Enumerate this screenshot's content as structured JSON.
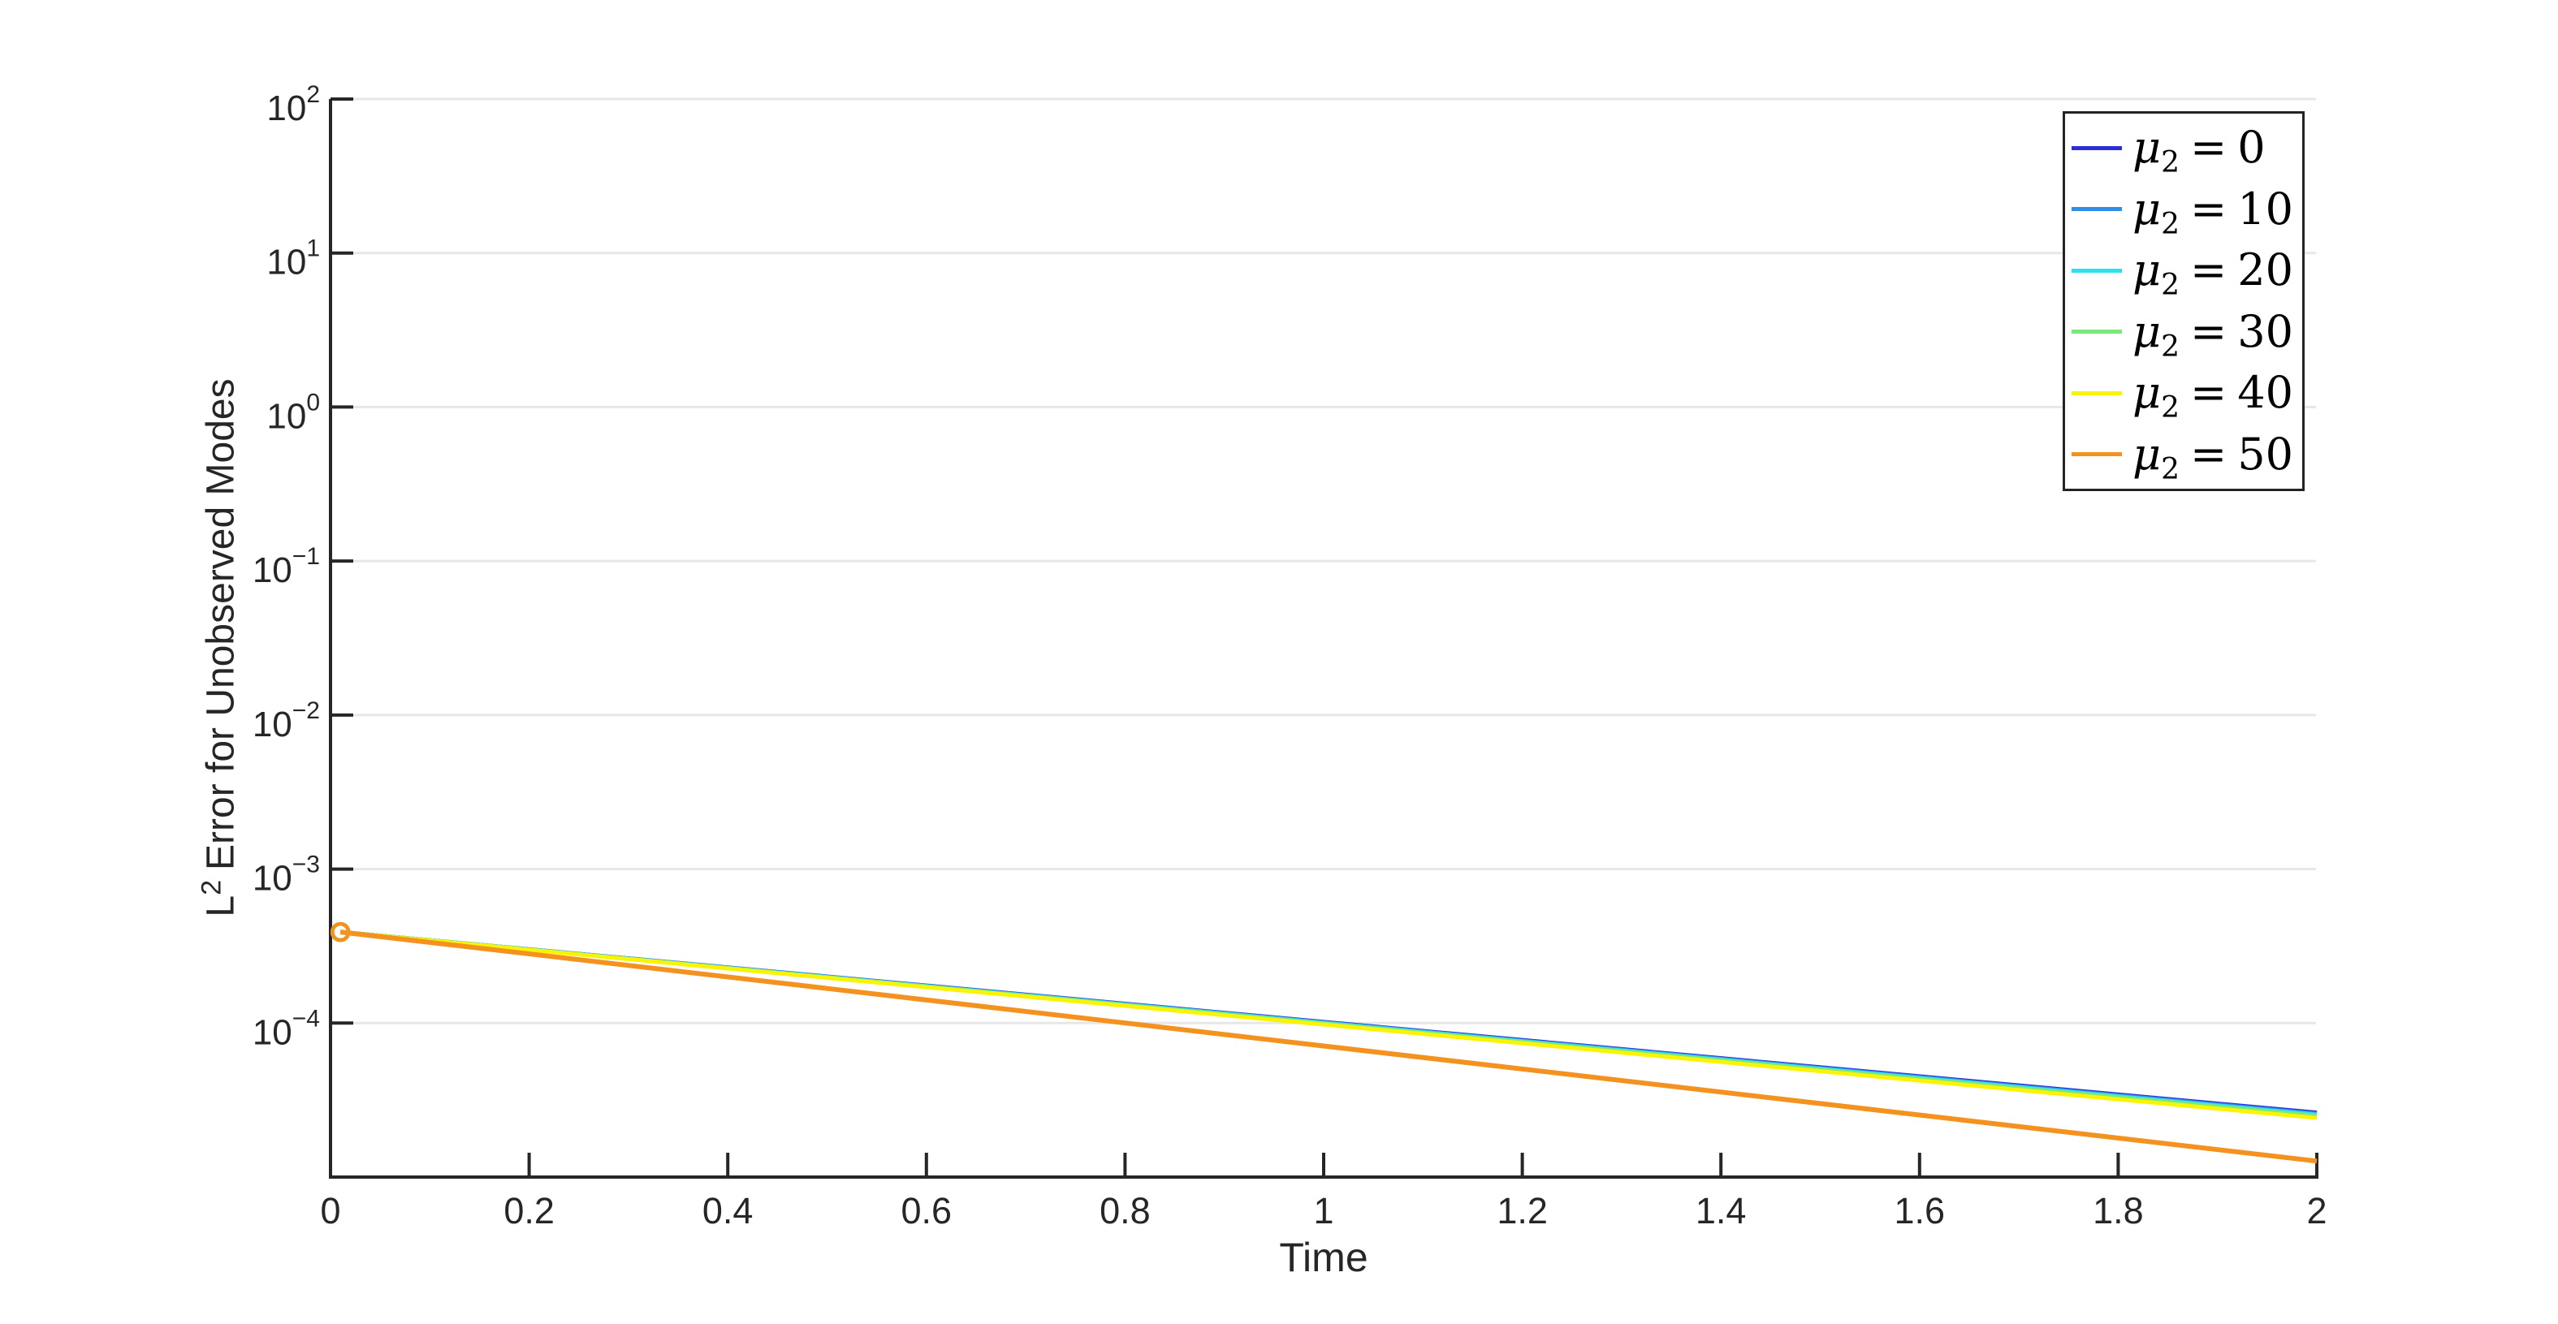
{
  "figure": {
    "background": "#ffffff",
    "title": ""
  },
  "labels": {
    "xlabel": "Time",
    "ylabel_pre": "L",
    "ylabel_sup": "2",
    "ylabel_rest": "Error for Unobserved Modes"
  },
  "colors": {
    "axis": "#262626",
    "grid": "#e7e7e7",
    "legend_border": "#242424"
  },
  "chart_data": {
    "type": "line",
    "title": "",
    "xlabel": "Time",
    "ylabel": "L^2 Error for Unobserved Modes",
    "x_axis": {
      "lim": [
        0,
        2
      ],
      "ticks": [
        {
          "label": "0",
          "value": 0
        },
        {
          "label": "0.2",
          "value": 0.2
        },
        {
          "label": "0.4",
          "value": 0.4
        },
        {
          "label": "0.6",
          "value": 0.6
        },
        {
          "label": "0.8",
          "value": 0.8
        },
        {
          "label": "1",
          "value": 1
        },
        {
          "label": "1.2",
          "value": 1.2
        },
        {
          "label": "1.4",
          "value": 1.4
        },
        {
          "label": "1.6",
          "value": 1.6
        },
        {
          "label": "1.8",
          "value": 1.8
        },
        {
          "label": "2",
          "value": 2
        }
      ]
    },
    "y_axis": {
      "scale": "log",
      "lim": [
        1e-05,
        100
      ],
      "ticks": [
        {
          "base": "10",
          "exp": "2",
          "value": 100
        },
        {
          "base": "10",
          "exp": "1",
          "value": 10
        },
        {
          "base": "10",
          "exp": "0",
          "value": 1
        },
        {
          "base": "10",
          "exp": "−1",
          "value": 0.1
        },
        {
          "base": "10",
          "exp": "−2",
          "value": 0.01
        },
        {
          "base": "10",
          "exp": "−3",
          "value": 0.001
        },
        {
          "base": "10",
          "exp": "−4",
          "value": 0.0001
        }
      ]
    },
    "grid": "horizontal gridlines at each decade, light gray",
    "legend_position": "upper right inside axes",
    "marker": "open circle at first data point of each series (orange topmost visible)",
    "shape_note": "each series is a straight line on the log scale (exponential decay) from a common start point",
    "series": [
      {
        "name": "mu2 = 0",
        "color": "#2b2fd9",
        "x": [
          0.01,
          2
        ],
        "y": [
          0.00039,
          2.62e-05
        ]
      },
      {
        "name": "mu2 = 10",
        "color": "#2f8fe8",
        "x": [
          0.01,
          2
        ],
        "y": [
          0.00039,
          2.58e-05
        ]
      },
      {
        "name": "mu2 = 20",
        "color": "#2ce0ee",
        "x": [
          0.01,
          2
        ],
        "y": [
          0.00039,
          2.54e-05
        ]
      },
      {
        "name": "mu2 = 30",
        "color": "#7ae87b",
        "x": [
          0.01,
          2
        ],
        "y": [
          0.00039,
          2.5e-05
        ]
      },
      {
        "name": "mu2 = 40",
        "color": "#f9f403",
        "x": [
          0.01,
          2
        ],
        "y": [
          0.00039,
          2.42e-05
        ]
      },
      {
        "name": "mu2 = 50",
        "color": "#f3921e",
        "x": [
          0.01,
          2
        ],
        "y": [
          0.00039,
          1.27e-05
        ]
      }
    ]
  },
  "legend": {
    "entries": [
      {
        "mu": "μ",
        "sub": "2",
        "eq": "=",
        "value": "0",
        "color": "#2b2fd9"
      },
      {
        "mu": "μ",
        "sub": "2",
        "eq": "=",
        "value": "10",
        "color": "#2f8fe8"
      },
      {
        "mu": "μ",
        "sub": "2",
        "eq": "=",
        "value": "20",
        "color": "#2ce0ee"
      },
      {
        "mu": "μ",
        "sub": "2",
        "eq": "=",
        "value": "30",
        "color": "#7ae87b"
      },
      {
        "mu": "μ",
        "sub": "2",
        "eq": "=",
        "value": "40",
        "color": "#f9f403"
      },
      {
        "mu": "μ",
        "sub": "2",
        "eq": "=",
        "value": "50",
        "color": "#f3921e"
      }
    ]
  }
}
